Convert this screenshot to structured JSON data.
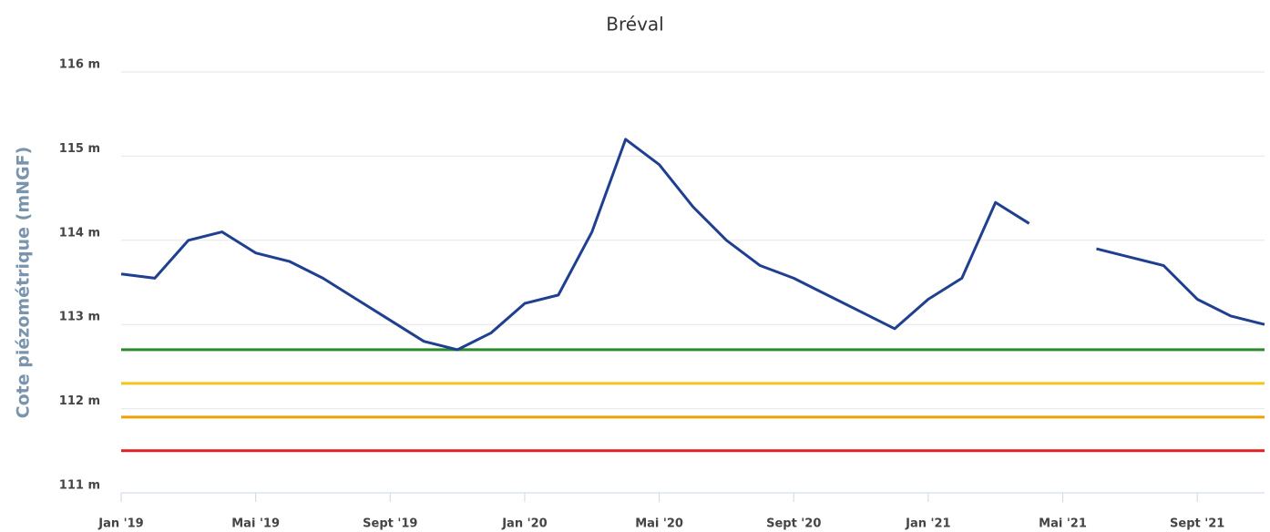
{
  "chart_data": {
    "type": "line",
    "title": "Bréval",
    "ylabel": "Cote piézométrique (mNGF)",
    "x": [
      "2019-01",
      "2019-02",
      "2019-03",
      "2019-04",
      "2019-05",
      "2019-06",
      "2019-07",
      "2019-08",
      "2019-09",
      "2019-10",
      "2019-11",
      "2019-12",
      "2020-01",
      "2020-02",
      "2020-03",
      "2020-04",
      "2020-05",
      "2020-06",
      "2020-07",
      "2020-08",
      "2020-09",
      "2020-10",
      "2020-11",
      "2020-12",
      "2021-01",
      "2021-02",
      "2021-03",
      "2021-04",
      "2021-05",
      "2021-06",
      "2021-07",
      "2021-08",
      "2021-09",
      "2021-10",
      "2021-11"
    ],
    "series": [
      {
        "color": "#1f3f8f",
        "values": [
          113.6,
          113.55,
          114.0,
          114.1,
          113.85,
          113.75,
          113.55,
          113.3,
          113.05,
          112.8,
          112.7,
          112.9,
          113.25,
          113.35,
          114.1,
          115.2,
          114.9,
          114.4,
          114.0,
          113.7,
          113.55,
          113.35,
          113.15,
          112.95,
          113.3,
          113.55,
          114.45,
          114.2,
          null,
          113.9,
          113.8,
          113.7,
          113.3,
          113.1,
          113.0
        ]
      }
    ],
    "reference_lines": [
      {
        "value": 112.7,
        "color": "#2a8a2a"
      },
      {
        "value": 112.3,
        "color": "#f5c518"
      },
      {
        "value": 111.9,
        "color": "#f0a000"
      },
      {
        "value": 111.5,
        "color": "#e02020"
      }
    ],
    "xlim": [
      "2019-01",
      "2021-11"
    ],
    "xticks": [
      {
        "value": "2019-01",
        "label": "Jan '19"
      },
      {
        "value": "2019-05",
        "label": "Mai '19"
      },
      {
        "value": "2019-09",
        "label": "Sept '19"
      },
      {
        "value": "2020-01",
        "label": "Jan '20"
      },
      {
        "value": "2020-05",
        "label": "Mai '20"
      },
      {
        "value": "2020-09",
        "label": "Sept '20"
      },
      {
        "value": "2021-01",
        "label": "Jan '21"
      },
      {
        "value": "2021-05",
        "label": "Mai '21"
      },
      {
        "value": "2021-09",
        "label": "Sept '21"
      }
    ],
    "ylim": [
      111,
      116
    ],
    "yticks": [
      {
        "value": 111,
        "label": "111 m"
      },
      {
        "value": 112,
        "label": "112 m"
      },
      {
        "value": 113,
        "label": "113 m"
      },
      {
        "value": 114,
        "label": "114 m"
      },
      {
        "value": 115,
        "label": "115 m"
      },
      {
        "value": 116,
        "label": "116 m"
      }
    ],
    "grid": true
  }
}
